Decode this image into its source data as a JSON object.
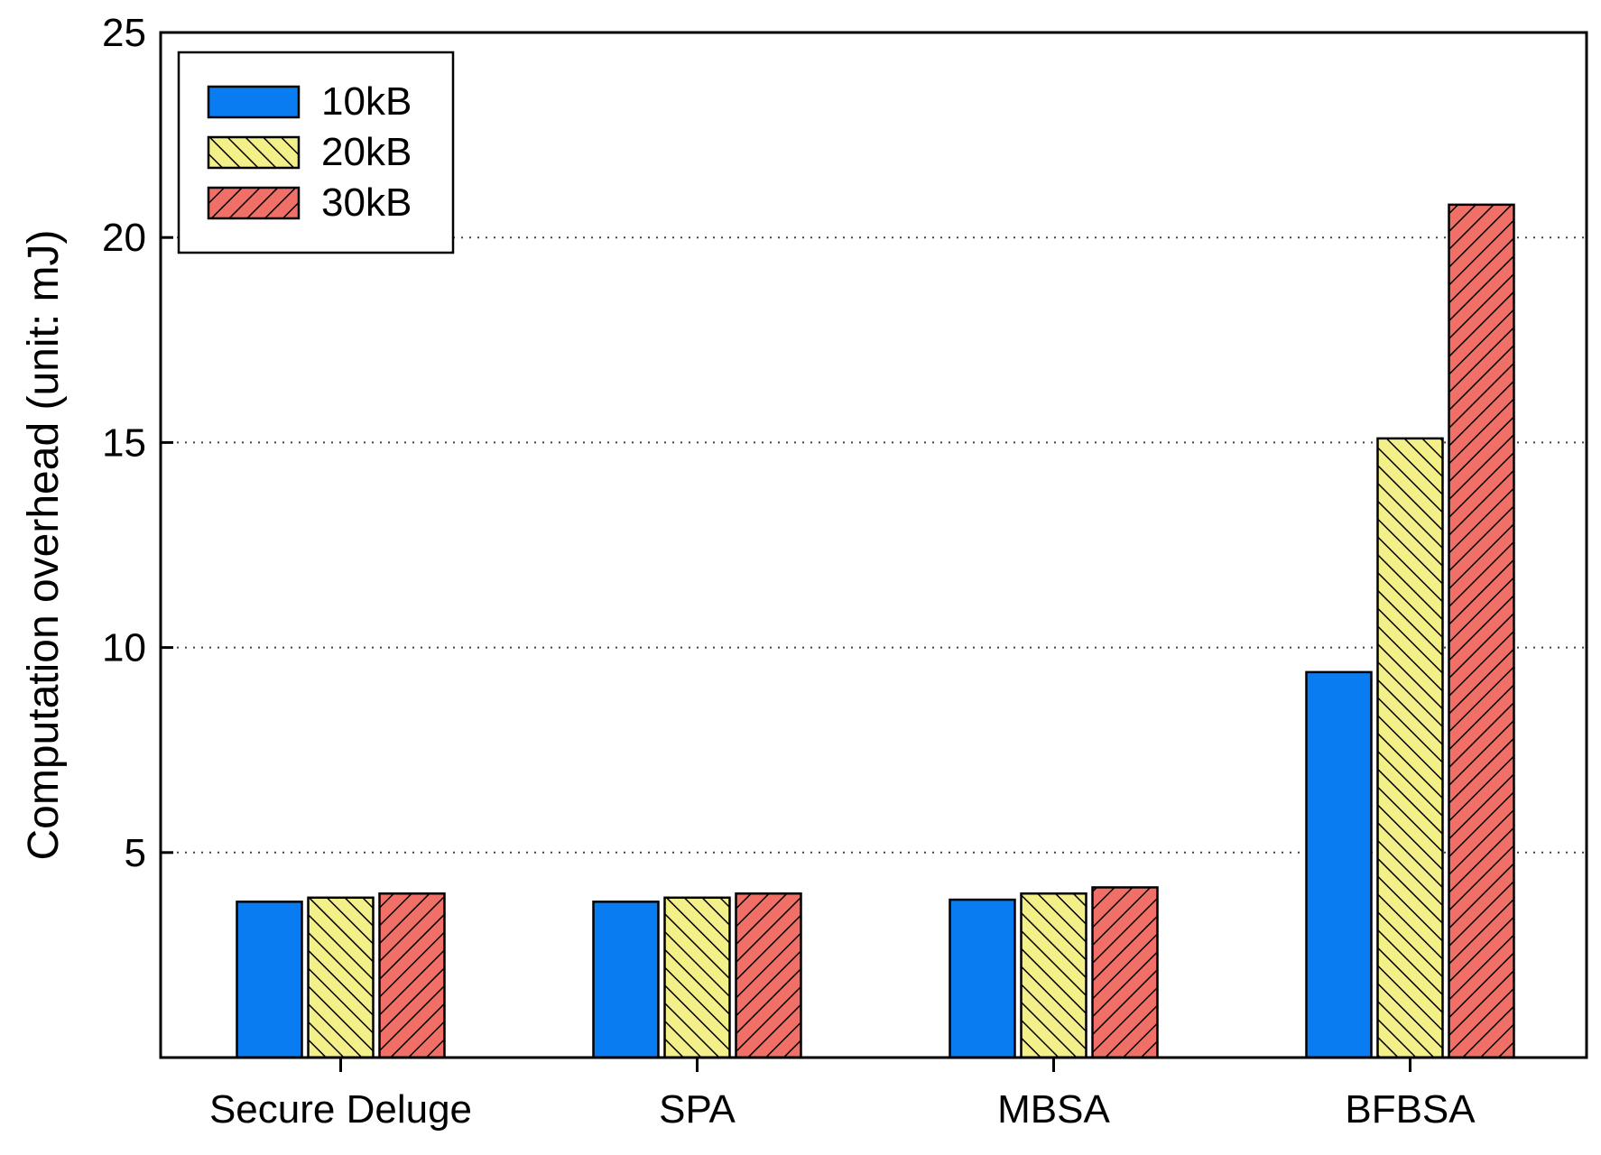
{
  "chart_data": {
    "type": "bar",
    "title": "",
    "xlabel": "",
    "ylabel": "Computation overhead (unit: mJ)",
    "categories": [
      "Secure Deluge",
      "SPA",
      "MBSA",
      "BFBSA"
    ],
    "series": [
      {
        "name": "10kB",
        "values": [
          3.8,
          3.8,
          3.85,
          9.4
        ],
        "color": "#0a7cf2",
        "pattern": "solid"
      },
      {
        "name": "20kB",
        "values": [
          3.9,
          3.9,
          4.0,
          15.1
        ],
        "color": "#f3f08a",
        "pattern": "hatch-forward"
      },
      {
        "name": "30kB",
        "values": [
          4.0,
          4.0,
          4.15,
          20.8
        ],
        "color": "#f07068",
        "pattern": "hatch-backward"
      }
    ],
    "ylim": [
      0,
      25
    ],
    "yticks": [
      5,
      10,
      15,
      20,
      25
    ],
    "grid": "horizontal dotted",
    "legend_position": "top-left"
  }
}
